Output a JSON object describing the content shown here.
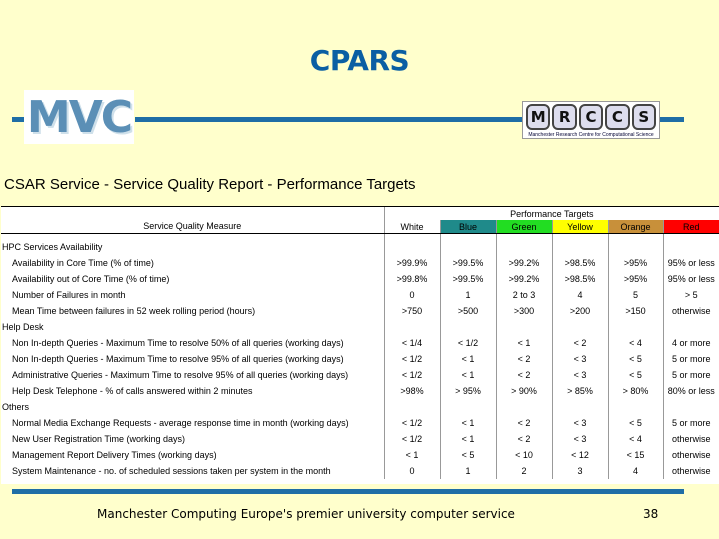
{
  "slide_title": "CPARS",
  "logos": {
    "left_text": "MVC",
    "right_letters": [
      "M",
      "R",
      "C",
      "C",
      "S"
    ],
    "right_tagline": "Manchester Research Centre for Computational Science"
  },
  "report_title": "CSAR Service - Service Quality Report - Performance Targets",
  "table": {
    "measure_header": "Service Quality Measure",
    "targets_header": "Performance Targets",
    "bands": [
      {
        "label": "White",
        "color": "#ffffff"
      },
      {
        "label": "Blue",
        "color": "#1f8a8a"
      },
      {
        "label": "Green",
        "color": "#22dd22"
      },
      {
        "label": "Yellow",
        "color": "#ffff00"
      },
      {
        "label": "Orange",
        "color": "#c8903a"
      },
      {
        "label": "Red",
        "color": "#ff0000"
      }
    ],
    "sections": [
      {
        "name": "HPC Services Availability",
        "rows": [
          {
            "measure": "Availability in Core Time (% of time)",
            "values": [
              ">99.9%",
              ">99.5%",
              ">99.2%",
              ">98.5%",
              ">95%",
              "95% or less"
            ]
          },
          {
            "measure": "Availability out of Core Time (% of time)",
            "values": [
              ">99.8%",
              ">99.5%",
              ">99.2%",
              ">98.5%",
              ">95%",
              "95% or less"
            ]
          },
          {
            "measure": "Number of Failures in month",
            "values": [
              "0",
              "1",
              "2 to 3",
              "4",
              "5",
              "> 5"
            ]
          },
          {
            "measure": "Mean Time between failures in 52 week rolling period (hours)",
            "values": [
              ">750",
              ">500",
              ">300",
              ">200",
              ">150",
              "otherwise"
            ]
          }
        ]
      },
      {
        "name": "Help Desk",
        "rows": [
          {
            "measure": "Non In-depth Queries - Maximum Time to resolve 50% of all queries (working days)",
            "values": [
              "< 1/4",
              "< 1/2",
              "< 1",
              "< 2",
              "< 4",
              "4 or more"
            ]
          },
          {
            "measure": "Non In-depth Queries - Maximum Time to resolve 95% of all queries (working days)",
            "values": [
              "< 1/2",
              "< 1",
              "< 2",
              "< 3",
              "< 5",
              "5 or more"
            ]
          },
          {
            "measure": "Administrative Queries - Maximum Time to resolve 95% of all queries (working days)",
            "values": [
              "< 1/2",
              "< 1",
              "< 2",
              "< 3",
              "< 5",
              "5 or more"
            ]
          },
          {
            "measure": "Help Desk Telephone - % of calls answered within 2 minutes",
            "values": [
              ">98%",
              "> 95%",
              "> 90%",
              "> 85%",
              "> 80%",
              "80% or less"
            ]
          }
        ]
      },
      {
        "name": "Others",
        "rows": [
          {
            "measure": "Normal Media Exchange Requests - average response time in month (working days)",
            "values": [
              "< 1/2",
              "< 1",
              "< 2",
              "< 3",
              "< 5",
              "5 or more"
            ]
          },
          {
            "measure": "New User Registration Time (working days)",
            "values": [
              "< 1/2",
              "< 1",
              "< 2",
              "< 3",
              "< 4",
              "otherwise"
            ]
          },
          {
            "measure": "Management Report Delivery Times (working days)",
            "values": [
              "< 1",
              "< 5",
              "< 10",
              "< 12",
              "< 15",
              "otherwise"
            ]
          },
          {
            "measure": "System Maintenance - no. of scheduled  sessions taken per system in the month",
            "values": [
              "0",
              "1",
              "2",
              "3",
              "4",
              "otherwise"
            ]
          }
        ]
      }
    ]
  },
  "footer": "Manchester Computing Europe's premier university computer service",
  "page_number": "38"
}
